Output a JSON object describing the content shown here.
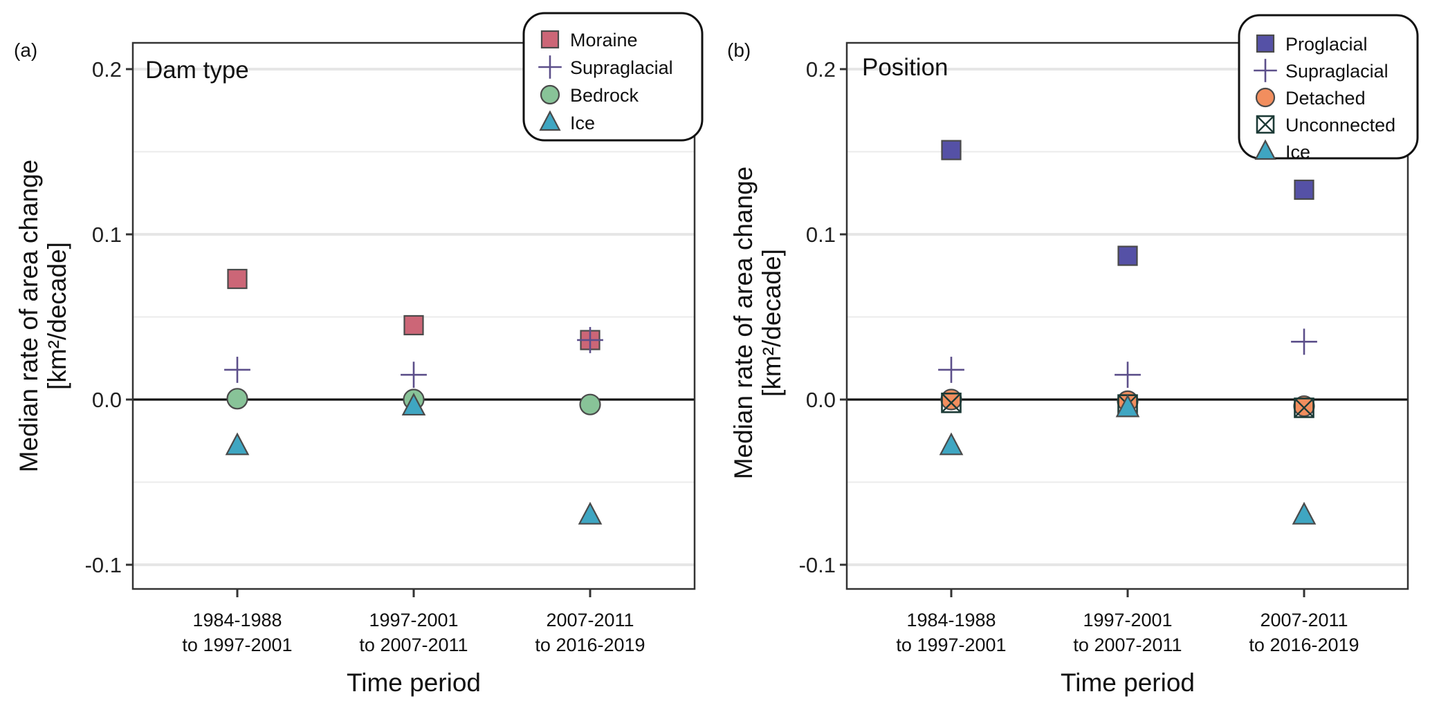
{
  "figure": {
    "panels": [
      {
        "tag": "(a)",
        "title": "Dam type"
      },
      {
        "tag": "(b)",
        "title": "Position"
      }
    ]
  },
  "chart_data": [
    {
      "type": "scatter",
      "panel_tag": "(a)",
      "title": "Dam type",
      "xlabel": "Time period",
      "ylabel_line1": "Median rate of area change",
      "ylabel_line2": "[km²/decade]",
      "categories": [
        [
          "1984-1988",
          "to 1997-2001"
        ],
        [
          "1997-2001",
          "to 2007-2011"
        ],
        [
          "2007-2011",
          "to 2016-2019"
        ]
      ],
      "ylim": [
        -0.115,
        0.215
      ],
      "yticks": [
        -0.1,
        0.0,
        0.1,
        0.2
      ],
      "ytick_labels": [
        "-0.1",
        "0.0",
        "0.1",
        "0.2"
      ],
      "minor_gridlines": [
        -0.05,
        0.05,
        0.15
      ],
      "zero_line": true,
      "grid": "horizontal",
      "legend_position": "top-right",
      "series": [
        {
          "name": "Moraine",
          "marker": "square",
          "color": "#CC6677",
          "values": [
            0.073,
            0.045,
            0.036
          ]
        },
        {
          "name": "Supraglacial",
          "marker": "plus",
          "color": "#5C4F8A",
          "values": [
            0.018,
            0.015,
            0.036
          ]
        },
        {
          "name": "Bedrock",
          "marker": "circle",
          "color": "#88C398",
          "values": [
            0.0005,
            0.0,
            -0.003
          ]
        },
        {
          "name": "Ice",
          "marker": "triangle",
          "color": "#3FA6C2",
          "values": [
            -0.028,
            -0.004,
            -0.07
          ]
        }
      ]
    },
    {
      "type": "scatter",
      "panel_tag": "(b)",
      "title": "Position",
      "xlabel": "Time period",
      "ylabel_line1": "Median rate of area change",
      "ylabel_line2": "[km²/decade]",
      "categories": [
        [
          "1984-1988",
          "to 1997-2001"
        ],
        [
          "1997-2001",
          "to 2007-2011"
        ],
        [
          "2007-2011",
          "to 2016-2019"
        ]
      ],
      "ylim": [
        -0.115,
        0.215
      ],
      "yticks": [
        -0.1,
        0.0,
        0.1,
        0.2
      ],
      "ytick_labels": [
        "-0.1",
        "0.0",
        "0.1",
        "0.2"
      ],
      "minor_gridlines": [
        -0.05,
        0.05,
        0.15
      ],
      "zero_line": true,
      "grid": "horizontal",
      "legend_position": "top-right",
      "series": [
        {
          "name": "Proglacial",
          "marker": "square",
          "color": "#5551A6",
          "values": [
            0.151,
            0.087,
            0.127
          ]
        },
        {
          "name": "Supraglacial",
          "marker": "plus",
          "color": "#5C4F8A",
          "values": [
            0.018,
            0.015,
            0.035
          ]
        },
        {
          "name": "Detached",
          "marker": "circle",
          "color": "#F28E5E",
          "values": [
            0.0,
            -0.001,
            -0.004
          ]
        },
        {
          "name": "Unconnected",
          "marker": "boxed-x",
          "color": "#1C3A36",
          "values": [
            -0.002,
            -0.003,
            -0.005
          ]
        },
        {
          "name": "Ice",
          "marker": "triangle",
          "color": "#3FA6C2",
          "values": [
            -0.028,
            -0.005,
            -0.07
          ]
        }
      ]
    }
  ]
}
